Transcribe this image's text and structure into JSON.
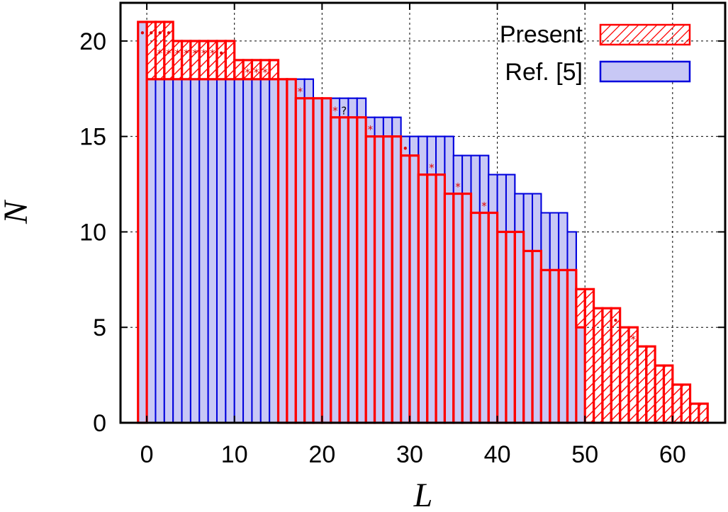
{
  "chart_data": {
    "type": "bar",
    "xlabel": "L",
    "ylabel": "N",
    "xlim": [
      -3,
      66
    ],
    "ylim": [
      0,
      22
    ],
    "xticks": [
      0,
      10,
      20,
      30,
      40,
      50,
      60
    ],
    "yticks": [
      0,
      5,
      10,
      15,
      20
    ],
    "grid": true,
    "legend_position": "top-right",
    "series": [
      {
        "name": "Present",
        "style": "hatched",
        "color": "#ff0000",
        "x": [
          -1,
          0,
          1,
          2,
          3,
          4,
          5,
          6,
          7,
          8,
          9,
          10,
          11,
          12,
          13,
          14,
          15,
          16,
          17,
          18,
          19,
          20,
          21,
          22,
          23,
          24,
          25,
          26,
          27,
          28,
          29,
          30,
          31,
          32,
          33,
          34,
          35,
          36,
          37,
          38,
          39,
          40,
          41,
          42,
          43,
          44,
          45,
          46,
          47,
          48,
          49,
          50,
          51,
          52,
          53,
          54,
          55,
          56,
          57,
          58,
          59,
          60,
          61,
          62,
          63
        ],
        "values": [
          21,
          21,
          21,
          21,
          20,
          20,
          20,
          20,
          20,
          20,
          20,
          19,
          19,
          19,
          19,
          19,
          18,
          18,
          17,
          17,
          17,
          17,
          16,
          16,
          16,
          16,
          15,
          15,
          15,
          15,
          14,
          14,
          13,
          13,
          13,
          12,
          12,
          12,
          11,
          11,
          11,
          10,
          10,
          10,
          9,
          9,
          8,
          8,
          8,
          8,
          7,
          7,
          6,
          6,
          6,
          5,
          5,
          4,
          4,
          3,
          3,
          2,
          2,
          1,
          1
        ]
      },
      {
        "name": "Ref. [5]",
        "style": "filled",
        "color": "#0000dd",
        "fill": "#c8c8f5",
        "x": [
          -1,
          0,
          1,
          2,
          3,
          4,
          5,
          6,
          7,
          8,
          9,
          10,
          11,
          12,
          13,
          14,
          15,
          16,
          17,
          18,
          19,
          20,
          21,
          22,
          23,
          24,
          25,
          26,
          27,
          28,
          29,
          30,
          31,
          32,
          33,
          34,
          35,
          36,
          37,
          38,
          39,
          40,
          41,
          42,
          43,
          44,
          45,
          46,
          47,
          48,
          49
        ],
        "values": [
          21,
          18,
          18,
          18,
          18,
          18,
          18,
          18,
          18,
          18,
          18,
          18,
          18,
          18,
          18,
          18,
          18,
          18,
          18,
          18,
          17,
          17,
          17,
          17,
          17,
          17,
          16,
          16,
          16,
          16,
          15,
          15,
          15,
          15,
          15,
          15,
          14,
          14,
          14,
          14,
          13,
          13,
          13,
          12,
          12,
          12,
          11,
          11,
          11,
          10,
          5
        ]
      }
    ],
    "markers": [
      {
        "x": -0.5,
        "y": 20.4,
        "symbol": "•"
      },
      {
        "x": 0.5,
        "y": 20.4,
        "symbol": "•"
      },
      {
        "x": 1.5,
        "y": 20.4,
        "symbol": "•"
      },
      {
        "x": 2.5,
        "y": 20.4,
        "symbol": "•"
      },
      {
        "x": 1.5,
        "y": 19.35,
        "symbol": "*"
      },
      {
        "x": 2.5,
        "y": 19.35,
        "symbol": "*"
      },
      {
        "x": 3.5,
        "y": 19.35,
        "symbol": "*"
      },
      {
        "x": 4.5,
        "y": 19.35,
        "symbol": "*"
      },
      {
        "x": 5.5,
        "y": 19.35,
        "symbol": "*"
      },
      {
        "x": 6.5,
        "y": 19.35,
        "symbol": "*"
      },
      {
        "x": 7.5,
        "y": 19.35,
        "symbol": "*"
      },
      {
        "x": 8.5,
        "y": 19.35,
        "symbol": "•"
      },
      {
        "x": 11.5,
        "y": 18.35,
        "symbol": "*"
      },
      {
        "x": 12.5,
        "y": 18.35,
        "symbol": "*"
      },
      {
        "x": 13.5,
        "y": 18.35,
        "symbol": "*"
      },
      {
        "x": 17.5,
        "y": 17.35,
        "symbol": "*"
      },
      {
        "x": 21.5,
        "y": 16.35,
        "symbol": "*"
      },
      {
        "x": 25.5,
        "y": 15.35,
        "symbol": "*"
      },
      {
        "x": 29.5,
        "y": 14.35,
        "symbol": "•"
      },
      {
        "x": 32.5,
        "y": 13.35,
        "symbol": "*"
      },
      {
        "x": 35.5,
        "y": 12.35,
        "symbol": "*"
      },
      {
        "x": 38.5,
        "y": 11.35,
        "symbol": "*"
      },
      {
        "x": 53.5,
        "y": 5.35,
        "symbol": "•"
      },
      {
        "x": 55.5,
        "y": 4.35,
        "symbol": "*"
      }
    ],
    "annotations": [
      {
        "x": 22.5,
        "y": 16.35,
        "text": "?"
      }
    ]
  }
}
